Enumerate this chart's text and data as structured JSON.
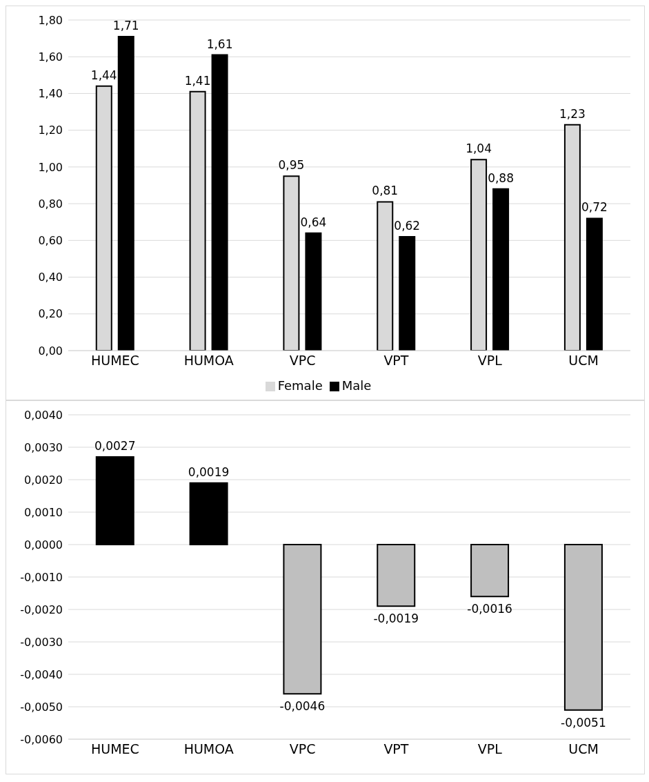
{
  "chart_data": [
    {
      "type": "bar",
      "categories": [
        "HUMEC",
        "HUMOA",
        "VPC",
        "VPT",
        "VPL",
        "UCM"
      ],
      "series": [
        {
          "name": "Female",
          "color": "#d9d9d9",
          "values": [
            1.44,
            1.41,
            0.95,
            0.81,
            1.04,
            1.23
          ],
          "value_labels": [
            "1,44",
            "1,41",
            "0,95",
            "0,81",
            "1,04",
            "1,23"
          ]
        },
        {
          "name": "Male",
          "color": "#000000",
          "values": [
            1.71,
            1.61,
            0.64,
            0.62,
            0.88,
            0.72
          ],
          "value_labels": [
            "1,71",
            "1,61",
            "0,64",
            "0,62",
            "0,88",
            "0,72"
          ]
        }
      ],
      "ylim": [
        0,
        1.8
      ],
      "yticks": [
        {
          "value": 0,
          "label": "0,00"
        },
        {
          "value": 0.2,
          "label": "0,20"
        },
        {
          "value": 0.4,
          "label": "0,40"
        },
        {
          "value": 0.6,
          "label": "0,60"
        },
        {
          "value": 0.8,
          "label": "0,80"
        },
        {
          "value": 1,
          "label": "1,00"
        },
        {
          "value": 1.2,
          "label": "1,20"
        },
        {
          "value": 1.4,
          "label": "1,40"
        },
        {
          "value": 1.6,
          "label": "1,60"
        },
        {
          "value": 1.8,
          "label": "1,80"
        }
      ],
      "grid": "y",
      "legend": "bottom"
    },
    {
      "type": "bar",
      "categories": [
        "HUMEC",
        "HUMOA",
        "VPC",
        "VPT",
        "VPL",
        "UCM"
      ],
      "values": [
        0.0027,
        0.0019,
        -0.0046,
        -0.0019,
        -0.0016,
        -0.0051
      ],
      "value_labels": [
        "0,0027",
        "0,0019",
        "-0,0046",
        "-0,0019",
        "-0,0016",
        "-0,0051"
      ],
      "colors": [
        "#000000",
        "#000000",
        "#bfbfbf",
        "#bfbfbf",
        "#bfbfbf",
        "#bfbfbf"
      ],
      "ylim": [
        -0.006,
        0.004
      ],
      "yticks": [
        {
          "value": -0.006,
          "label": "-0,0060"
        },
        {
          "value": -0.005,
          "label": "-0,0050"
        },
        {
          "value": -0.004,
          "label": "-0,0040"
        },
        {
          "value": -0.003,
          "label": "-0,0030"
        },
        {
          "value": -0.002,
          "label": "-0,0020"
        },
        {
          "value": -0.001,
          "label": "-0,0010"
        },
        {
          "value": 0,
          "label": "0,0000"
        },
        {
          "value": 0.001,
          "label": "0,0010"
        },
        {
          "value": 0.002,
          "label": "0,0020"
        },
        {
          "value": 0.003,
          "label": "0,0030"
        },
        {
          "value": 0.004,
          "label": "0,0040"
        }
      ],
      "grid": "y"
    }
  ]
}
